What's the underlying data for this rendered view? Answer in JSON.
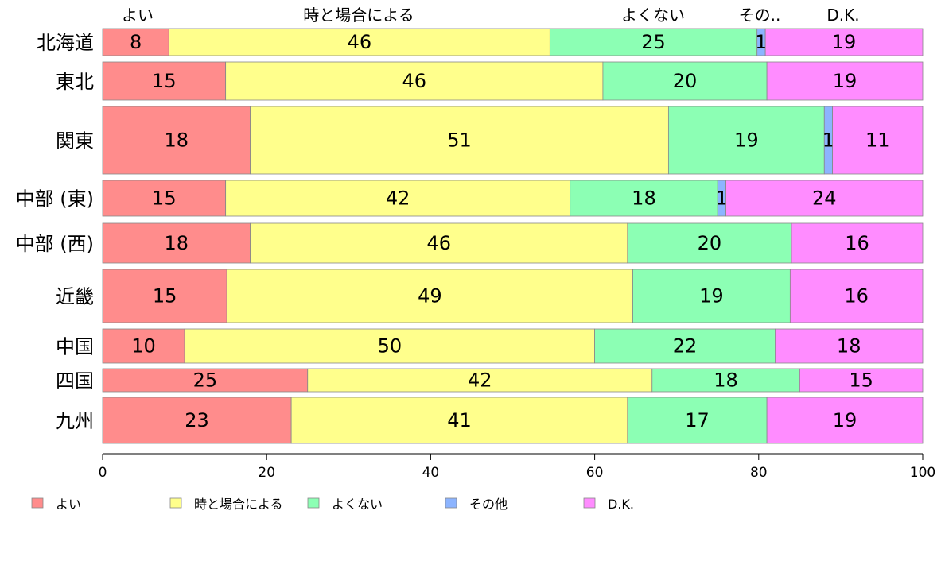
{
  "chart_data": {
    "type": "bar",
    "orientation": "horizontal",
    "stacked": true,
    "categories": [
      "北海道",
      "東北",
      "関東",
      "中部 (東)",
      "中部 (西)",
      "近畿",
      "中国",
      "四国",
      "九州"
    ],
    "series": [
      {
        "name": "よい",
        "top_label": "よい",
        "color": "#ff8c8c",
        "values": [
          8,
          15,
          18,
          15,
          18,
          15,
          10,
          25,
          23
        ]
      },
      {
        "name": "時と場合による",
        "top_label": "時と場合による",
        "color": "#ffff8c",
        "values": [
          46,
          46,
          51,
          42,
          46,
          49,
          50,
          42,
          41
        ]
      },
      {
        "name": "よくない",
        "top_label": "よくない",
        "color": "#8cffb4",
        "values": [
          25,
          20,
          19,
          18,
          20,
          19,
          22,
          18,
          17
        ]
      },
      {
        "name": "その他",
        "top_label": "その..",
        "color": "#8cb4ff",
        "values": [
          1,
          0,
          1,
          1,
          0,
          0,
          0,
          0,
          0
        ],
        "labels": [
          "1",
          "",
          "1",
          "1",
          "",
          "",
          "",
          "",
          ""
        ]
      },
      {
        "name": "D.K.",
        "top_label": "D.K.",
        "color": "#ff8cff",
        "values": [
          19,
          19,
          11,
          24,
          16,
          16,
          18,
          15,
          19
        ]
      }
    ],
    "xlim": [
      0,
      100
    ],
    "xticks": [
      "0",
      "20",
      "40",
      "60",
      "80",
      "100"
    ],
    "legend_position": "bottom-left",
    "grid": false
  }
}
